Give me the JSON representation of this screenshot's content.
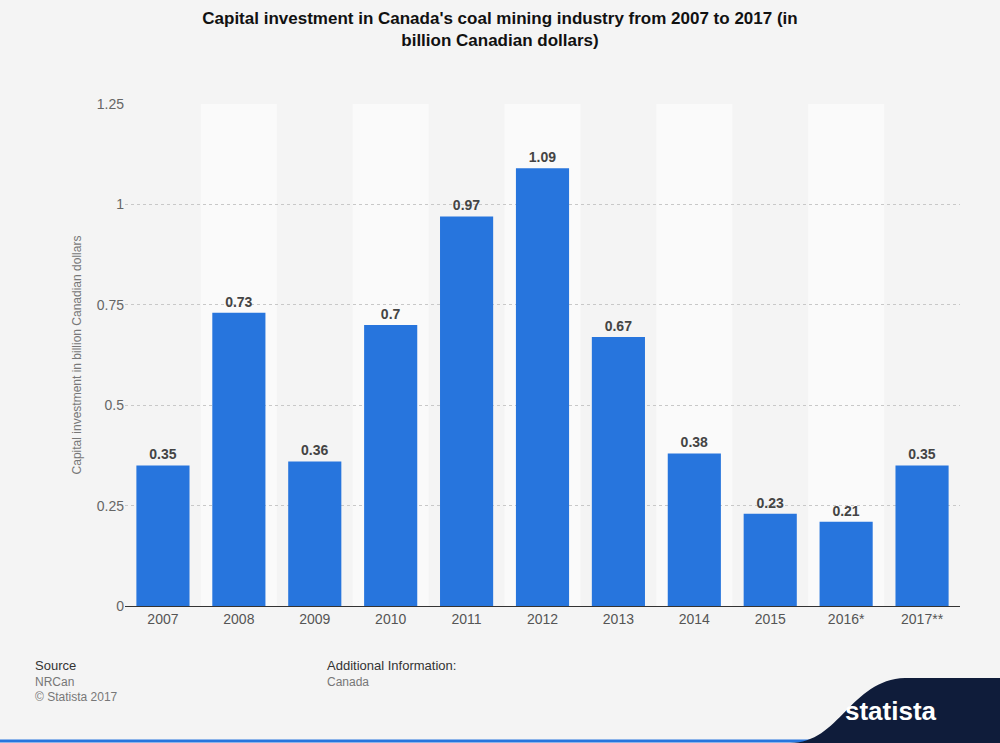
{
  "chart_data": {
    "type": "bar",
    "title": "Capital investment in Canada's coal mining industry from 2007 to 2017 (in billion Canadian dollars)",
    "ylabel": "Capital investment in billion Canadian dollars",
    "categories": [
      "2007",
      "2008",
      "2009",
      "2010",
      "2011",
      "2012",
      "2013",
      "2014",
      "2015",
      "2016*",
      "2017**"
    ],
    "values": [
      0.35,
      0.73,
      0.36,
      0.7,
      0.97,
      1.09,
      0.67,
      0.38,
      0.23,
      0.21,
      0.35
    ],
    "color": "#2775dd",
    "ylim": [
      0,
      1.25
    ],
    "yticks": [
      0,
      0.25,
      0.5,
      0.75,
      1,
      1.25
    ],
    "grid": true,
    "data_labels": true,
    "annotations": [
      "Source",
      "NRCan",
      "© Statista 2017",
      "Additional Information:",
      "Canada",
      "statista"
    ]
  }
}
